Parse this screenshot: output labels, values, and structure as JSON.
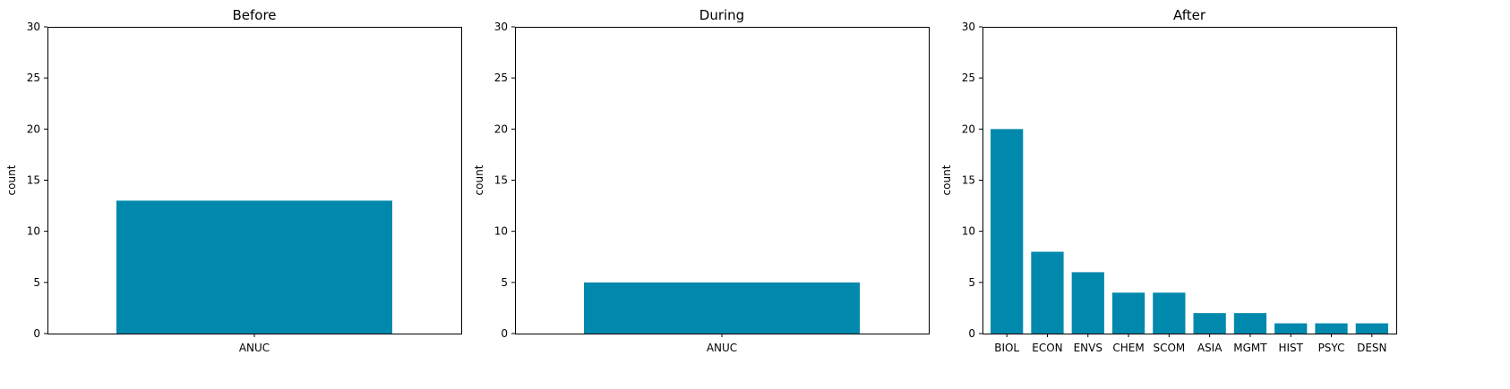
{
  "colors": {
    "bar": "#0088ad",
    "background": "#ffffff",
    "axis": "#000000"
  },
  "chart_data": [
    {
      "type": "bar",
      "title": "Before",
      "xlabel": "",
      "ylabel": "count",
      "ylim": [
        0,
        30
      ],
      "yticks": [
        0,
        5,
        10,
        15,
        20,
        25,
        30
      ],
      "categories": [
        "ANUC"
      ],
      "values": [
        13
      ],
      "grid": false
    },
    {
      "type": "bar",
      "title": "During",
      "xlabel": "",
      "ylabel": "count",
      "ylim": [
        0,
        30
      ],
      "yticks": [
        0,
        5,
        10,
        15,
        20,
        25,
        30
      ],
      "categories": [
        "ANUC"
      ],
      "values": [
        5
      ],
      "grid": false
    },
    {
      "type": "bar",
      "title": "After",
      "xlabel": "",
      "ylabel": "count",
      "ylim": [
        0,
        30
      ],
      "yticks": [
        0,
        5,
        10,
        15,
        20,
        25,
        30
      ],
      "categories": [
        "BIOL",
        "ECON",
        "ENVS",
        "CHEM",
        "SCOM",
        "ASIA",
        "MGMT",
        "HIST",
        "PSYC",
        "DESN"
      ],
      "values": [
        20,
        8,
        6,
        4,
        4,
        2,
        2,
        1,
        1,
        1
      ],
      "grid": false
    }
  ]
}
